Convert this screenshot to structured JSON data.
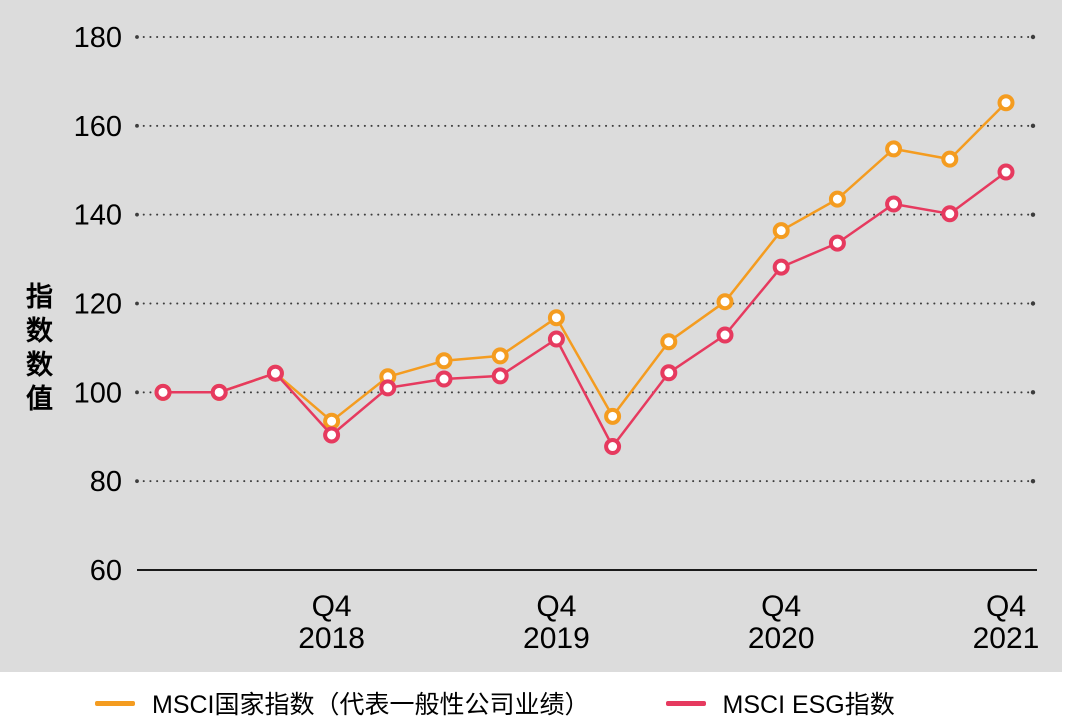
{
  "page": {
    "background": "#ffffff",
    "plot_background": "#dcdcdc"
  },
  "chart_data": {
    "type": "line",
    "title": "",
    "xlabel": "",
    "ylabel": "指数数值",
    "ylim": [
      60,
      180
    ],
    "y_ticks": [
      60,
      80,
      100,
      120,
      140,
      160,
      180
    ],
    "grid": "dotted horizontal gridlines, solid bottom axis",
    "grid_color": "#3d3d3d",
    "axis_color": "#1a1a1a",
    "text_color": "#000000",
    "legend_position": "bottom",
    "n_points": 16,
    "x_frequency": "quarterly",
    "x_ticks": [
      {
        "index": 3,
        "quarter": "Q4",
        "year": "2018"
      },
      {
        "index": 7,
        "quarter": "Q4",
        "year": "2019"
      },
      {
        "index": 11,
        "quarter": "Q4",
        "year": "2020"
      },
      {
        "index": 15,
        "quarter": "Q4",
        "year": "2021"
      }
    ],
    "series": [
      {
        "name": "MSCI国家指数（代表一般性公司业绩）",
        "color": "#F49C20",
        "marker": "circle-white-fill",
        "values": [
          100,
          100,
          104.3,
          93.5,
          103.5,
          107.1,
          108.2,
          116.8,
          94.6,
          111.4,
          120.4,
          136.4,
          143.5,
          154.8,
          152.5,
          165.2
        ]
      },
      {
        "name": "MSCI ESG指数",
        "color": "#E63A5F",
        "marker": "circle-white-fill",
        "values": [
          100,
          100,
          104.3,
          90.4,
          101.0,
          103.0,
          103.7,
          112.0,
          87.8,
          104.4,
          112.9,
          128.2,
          133.6,
          142.4,
          140.2,
          149.6
        ]
      }
    ]
  }
}
